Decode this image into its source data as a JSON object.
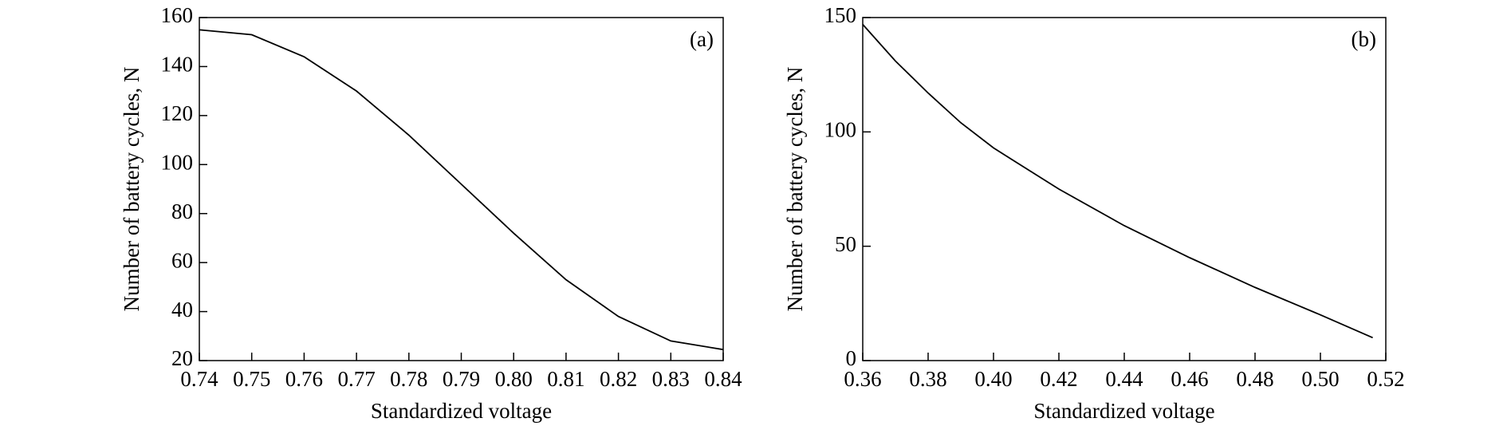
{
  "chart_data": [
    {
      "type": "line",
      "annotation": "(a)",
      "xlabel": "Standardized voltage",
      "ylabel": "Number of battery cycles, N",
      "x": [
        0.74,
        0.75,
        0.76,
        0.77,
        0.78,
        0.79,
        0.8,
        0.81,
        0.82,
        0.83,
        0.84
      ],
      "series": [
        {
          "color": "#000000",
          "values": [
            155,
            153,
            144,
            130,
            112,
            92,
            72,
            53,
            38,
            28,
            24.5
          ]
        }
      ],
      "xlim": [
        0.74,
        0.84
      ],
      "xticks": [
        0.74,
        0.75,
        0.76,
        0.77,
        0.78,
        0.79,
        {
          "value": 0.8,
          "label": "0.80"
        },
        0.81,
        0.82,
        0.83,
        0.84
      ],
      "ylim": [
        20,
        160
      ],
      "yticks": [
        20,
        40,
        60,
        80,
        100,
        120,
        140,
        160
      ]
    },
    {
      "type": "line",
      "annotation": "(b)",
      "xlabel": "Standardized voltage",
      "ylabel": "Number of battery cycles, N",
      "x": [
        0.36,
        0.37,
        0.38,
        0.39,
        0.4,
        0.42,
        0.44,
        0.46,
        0.48,
        0.5,
        0.516
      ],
      "series": [
        {
          "color": "#000000",
          "values": [
            147,
            131,
            117,
            104,
            93,
            75,
            59,
            45,
            32,
            20,
            10
          ]
        }
      ],
      "xlim": [
        0.36,
        0.52
      ],
      "xticks": [
        0.36,
        0.38,
        {
          "value": 0.4,
          "label": "0.40"
        },
        0.42,
        0.44,
        0.46,
        0.48,
        {
          "value": 0.5,
          "label": "0.50"
        },
        0.52
      ],
      "ylim": [
        0,
        150
      ],
      "yticks": [
        0,
        50,
        100,
        150
      ]
    }
  ]
}
